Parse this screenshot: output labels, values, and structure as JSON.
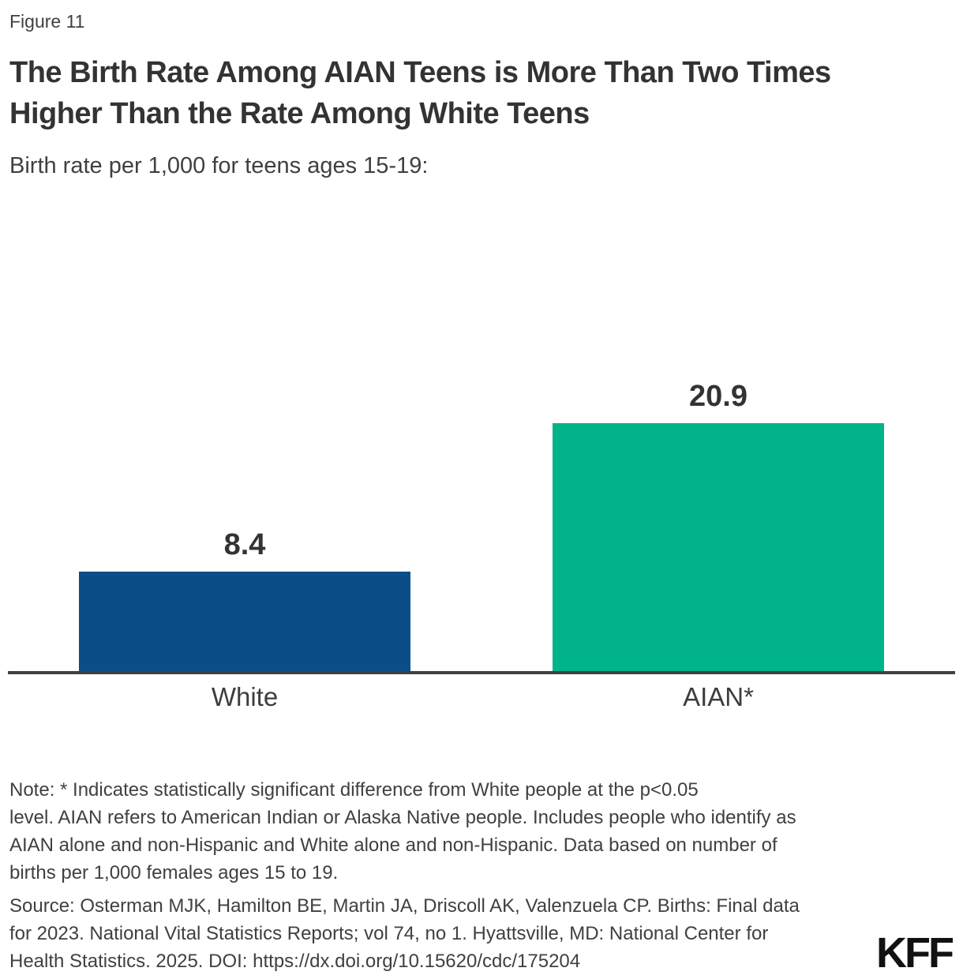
{
  "figure_label": "Figure 11",
  "title": {
    "full": "The Birth Rate Among AIAN Teens is More Than Two Times Higher Than the Rate Among White Teens",
    "lines": [
      "The Birth Rate Among AIAN Teens is More Than Two Times",
      "Higher Than the Rate Among White Teens"
    ]
  },
  "subtitle": "Birth rate per 1,000 for teens ages 15-19:",
  "chart_data": {
    "type": "bar",
    "categories": [
      "White",
      "AIAN*"
    ],
    "values": [
      8.4,
      20.9
    ],
    "value_labels": [
      "8.4",
      "20.9"
    ],
    "series": [
      {
        "name": "Birth rate per 1,000 teens ages 15-19",
        "values": [
          8.4,
          20.9
        ]
      }
    ],
    "title": "The Birth Rate Among AIAN Teens is More Than Two Times Higher Than the Rate Among White Teens",
    "xlabel": "",
    "ylabel": "Birth rate per 1,000 for teens ages 15-19",
    "ylim": [
      0,
      24
    ],
    "grid": false,
    "legend_position": "none",
    "bar_colors": [
      "#0B4E87",
      "#00B388"
    ]
  },
  "colors": {
    "bar_white": "#0B4E87",
    "bar_aian": "#00B388",
    "axis": "#404040",
    "text_primary": "#333333",
    "text_secondary": "#404040",
    "background": "#FFFFFF"
  },
  "note": {
    "lines": [
      "Note: * Indicates statistically significant difference from White people at the p<0.05",
      "level. AIAN refers to American Indian or Alaska Native people. Includes people who identify as",
      "AIAN alone and non-Hispanic and White alone and non-Hispanic. Data based on number of",
      "births per 1,000 females ages 15 to 19."
    ]
  },
  "source": {
    "lines": [
      "Source: Osterman MJK, Hamilton BE, Martin JA, Driscoll AK, Valenzuela CP. Births: Final data",
      "for 2023. National Vital Statistics Reports; vol 74, no 1. Hyattsville, MD: National Center for",
      "Health Statistics. 2025. DOI: https://dx.doi.org/10.15620/cdc/175204"
    ]
  },
  "logo": {
    "text": "KFF"
  }
}
